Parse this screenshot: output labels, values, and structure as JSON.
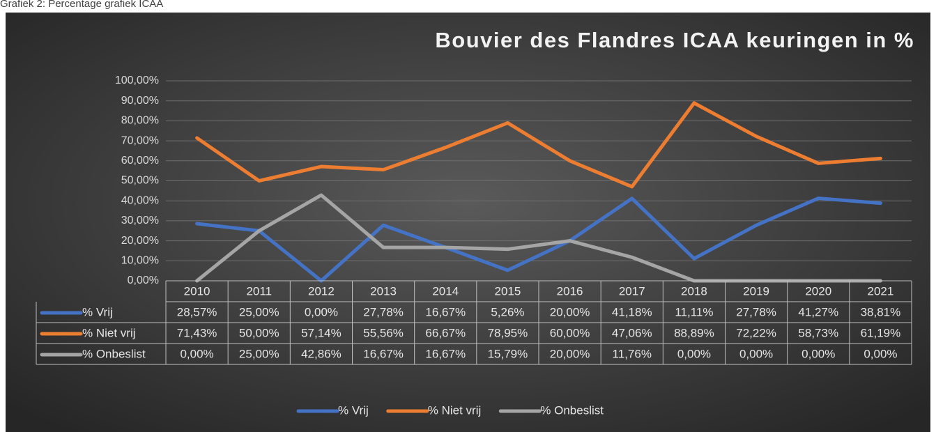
{
  "caption": "Grafiek 2: Percentage grafiek ICAA",
  "chart_data": {
    "type": "line",
    "title": "Bouvier des Flandres ICAA keuringen in %",
    "categories": [
      "2010",
      "2011",
      "2012",
      "2013",
      "2014",
      "2015",
      "2016",
      "2017",
      "2018",
      "2019",
      "2020",
      "2021"
    ],
    "series": [
      {
        "name": "% Vrij",
        "color": "#4472c4",
        "values": [
          28.57,
          25.0,
          0.0,
          27.78,
          16.67,
          5.26,
          20.0,
          41.18,
          11.11,
          27.78,
          41.27,
          38.81
        ],
        "value_labels": [
          "28,57%",
          "25,00%",
          "0,00%",
          "27,78%",
          "16,67%",
          "5,26%",
          "20,00%",
          "41,18%",
          "11,11%",
          "27,78%",
          "41,27%",
          "38,81%"
        ]
      },
      {
        "name": "% Niet vrij",
        "color": "#ed7d31",
        "values": [
          71.43,
          50.0,
          57.14,
          55.56,
          66.67,
          78.95,
          60.0,
          47.06,
          88.89,
          72.22,
          58.73,
          61.19
        ],
        "value_labels": [
          "71,43%",
          "50,00%",
          "57,14%",
          "55,56%",
          "66,67%",
          "78,95%",
          "60,00%",
          "47,06%",
          "88,89%",
          "72,22%",
          "58,73%",
          "61,19%"
        ]
      },
      {
        "name": "% Onbeslist",
        "color": "#a5a5a5",
        "values": [
          0.0,
          25.0,
          42.86,
          16.67,
          16.67,
          15.79,
          20.0,
          11.76,
          0.0,
          0.0,
          0.0,
          0.0
        ],
        "value_labels": [
          "0,00%",
          "25,00%",
          "42,86%",
          "16,67%",
          "16,67%",
          "15,79%",
          "20,00%",
          "11,76%",
          "0,00%",
          "0,00%",
          "0,00%",
          "0,00%"
        ]
      }
    ],
    "ylim": [
      0,
      100
    ],
    "yticks": [
      {
        "value": 0,
        "label": "0,00%"
      },
      {
        "value": 10,
        "label": "10,00%"
      },
      {
        "value": 20,
        "label": "20,00%"
      },
      {
        "value": 30,
        "label": "30,00%"
      },
      {
        "value": 40,
        "label": "40,00%"
      },
      {
        "value": 50,
        "label": "50,00%"
      },
      {
        "value": 60,
        "label": "60,00%"
      },
      {
        "value": 70,
        "label": "70,00%"
      },
      {
        "value": 80,
        "label": "80,00%"
      },
      {
        "value": 90,
        "label": "90,00%"
      },
      {
        "value": 100,
        "label": "100,00%"
      }
    ],
    "grid": true,
    "legend": "bottom"
  }
}
